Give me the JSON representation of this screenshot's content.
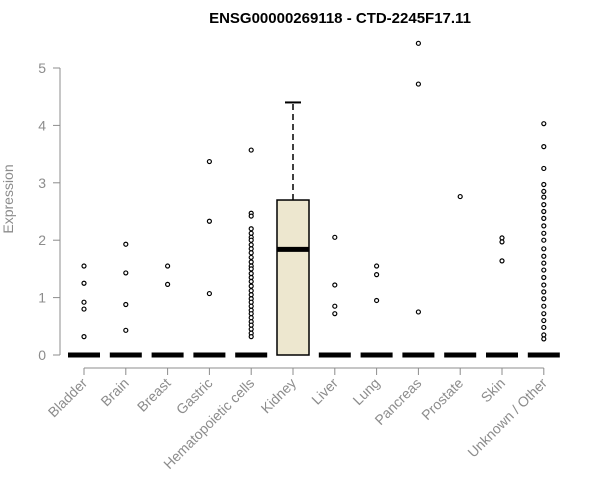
{
  "chart_data": {
    "type": "box",
    "title": "ENSG00000269118 - CTD-2245F17.11",
    "xlabel": "",
    "ylabel": "Expression",
    "ylim": [
      0,
      5.5
    ],
    "yticks": [
      0,
      1,
      2,
      3,
      4,
      5
    ],
    "grid": false,
    "fill_color": "#ede7cf",
    "categories": [
      "Bladder",
      "Brain",
      "Breast",
      "Gastric",
      "Hematopoietic cells",
      "Kidney",
      "Liver",
      "Lung",
      "Pancreas",
      "Prostate",
      "Skin",
      "Unknown / Other"
    ],
    "boxes": [
      {
        "q1": 0,
        "median": 0,
        "q3": 0,
        "whisker_low": 0,
        "whisker_high": 0,
        "outliers": [
          1.55,
          1.25,
          0.92,
          0.8,
          0.32
        ]
      },
      {
        "q1": 0,
        "median": 0,
        "q3": 0,
        "whisker_low": 0,
        "whisker_high": 0,
        "outliers": [
          1.93,
          1.43,
          0.88,
          0.43
        ]
      },
      {
        "q1": 0,
        "median": 0,
        "q3": 0,
        "whisker_low": 0,
        "whisker_high": 0,
        "outliers": [
          1.55,
          1.23
        ]
      },
      {
        "q1": 0,
        "median": 0,
        "q3": 0,
        "whisker_low": 0,
        "whisker_high": 0,
        "outliers": [
          3.37,
          2.33,
          1.07
        ]
      },
      {
        "q1": 0,
        "median": 0,
        "q3": 0,
        "whisker_low": 0,
        "whisker_high": 0,
        "outliers": [
          3.57,
          2.47,
          2.42,
          2.2,
          2.12,
          2.05,
          2.0,
          1.92,
          1.85,
          1.78,
          1.7,
          1.62,
          1.55,
          1.5,
          1.42,
          1.35,
          1.28,
          1.2,
          1.12,
          1.05,
          0.98,
          0.92,
          0.85,
          0.78,
          0.72,
          0.65,
          0.58,
          0.52,
          0.45,
          0.38,
          0.32
        ]
      },
      {
        "q1": 0,
        "median": 1.84,
        "q3": 2.7,
        "whisker_low": 0,
        "whisker_high": 4.4,
        "outliers": []
      },
      {
        "q1": 0,
        "median": 0,
        "q3": 0,
        "whisker_low": 0,
        "whisker_high": 0,
        "outliers": [
          2.05,
          1.22,
          0.85,
          0.72
        ]
      },
      {
        "q1": 0,
        "median": 0,
        "q3": 0,
        "whisker_low": 0,
        "whisker_high": 0,
        "outliers": [
          1.55,
          1.4,
          0.95
        ]
      },
      {
        "q1": 0,
        "median": 0,
        "q3": 0,
        "whisker_low": 0,
        "whisker_high": 0,
        "outliers": [
          5.43,
          4.72,
          0.75
        ]
      },
      {
        "q1": 0,
        "median": 0,
        "q3": 0,
        "whisker_low": 0,
        "whisker_high": 0,
        "outliers": [
          2.76
        ]
      },
      {
        "q1": 0,
        "median": 0,
        "q3": 0,
        "whisker_low": 0,
        "whisker_high": 0,
        "outliers": [
          2.04,
          1.97,
          1.64
        ]
      },
      {
        "q1": 0,
        "median": 0,
        "q3": 0,
        "whisker_low": 0,
        "whisker_high": 0,
        "outliers": [
          4.03,
          3.63,
          3.25,
          2.97,
          2.85,
          2.75,
          2.62,
          2.5,
          2.38,
          2.25,
          2.12,
          2.0,
          1.85,
          1.72,
          1.6,
          1.48,
          1.35,
          1.22,
          1.1,
          0.98,
          0.85,
          0.72,
          0.6,
          0.48,
          0.35,
          0.28
        ]
      }
    ]
  }
}
